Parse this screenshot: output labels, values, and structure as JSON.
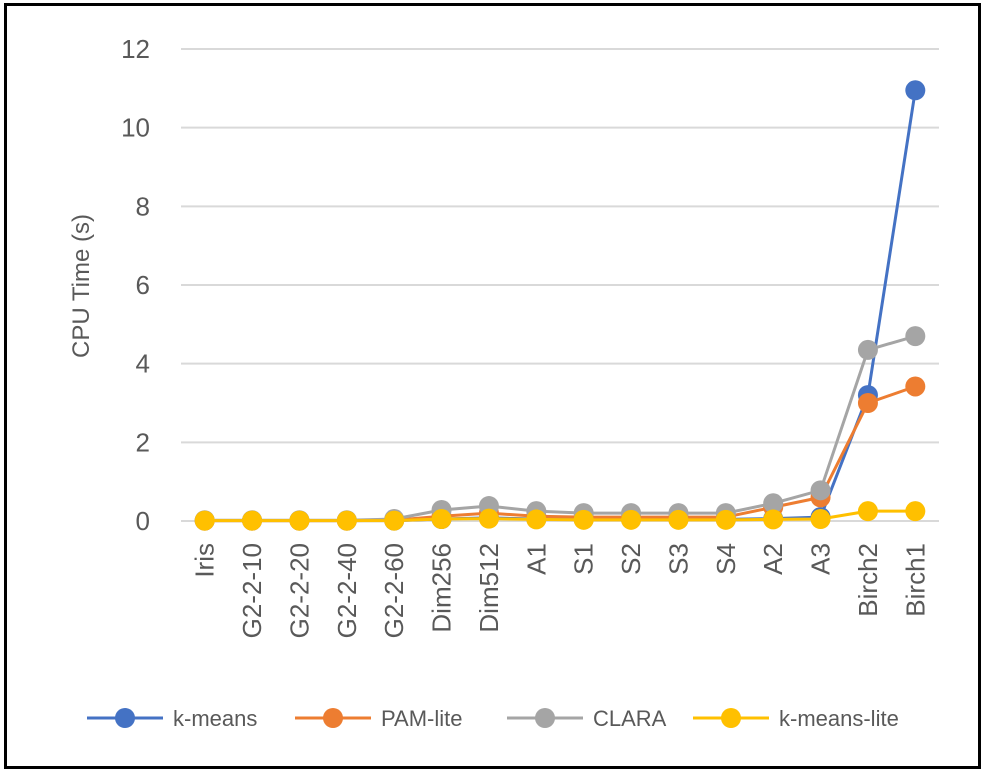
{
  "chart_data": {
    "type": "line",
    "title": "",
    "xlabel": "",
    "ylabel": "CPU Time (s)",
    "ylim": [
      0,
      12
    ],
    "yticks": [
      0,
      2,
      4,
      6,
      8,
      10,
      12
    ],
    "grid": true,
    "legend_position": "bottom",
    "categories": [
      "Iris",
      "G2-2-10",
      "G2-2-20",
      "G2-2-40",
      "G2-2-60",
      "Dim256",
      "Dim512",
      "A1",
      "S1",
      "S2",
      "S3",
      "S4",
      "A2",
      "A3",
      "Birch2",
      "Birch1"
    ],
    "series": [
      {
        "name": "k-means",
        "color": "#4472C4",
        "values": [
          0.01,
          0.01,
          0.01,
          0.01,
          0.01,
          0.05,
          0.08,
          0.05,
          0.04,
          0.04,
          0.04,
          0.04,
          0.06,
          0.1,
          3.2,
          10.95
        ]
      },
      {
        "name": "PAM-lite",
        "color": "#ED7D31",
        "values": [
          0.01,
          0.01,
          0.01,
          0.01,
          0.02,
          0.12,
          0.2,
          0.12,
          0.1,
          0.1,
          0.1,
          0.1,
          0.35,
          0.6,
          3.0,
          3.42
        ]
      },
      {
        "name": "CLARA",
        "color": "#A5A5A5",
        "values": [
          0.02,
          0.02,
          0.02,
          0.02,
          0.05,
          0.28,
          0.38,
          0.25,
          0.2,
          0.2,
          0.2,
          0.2,
          0.45,
          0.78,
          4.35,
          4.7
        ]
      },
      {
        "name": "k-means-lite",
        "color": "#FFC000",
        "values": [
          0.01,
          0.01,
          0.01,
          0.01,
          0.01,
          0.05,
          0.06,
          0.04,
          0.03,
          0.03,
          0.03,
          0.03,
          0.04,
          0.05,
          0.25,
          0.25
        ]
      }
    ]
  }
}
